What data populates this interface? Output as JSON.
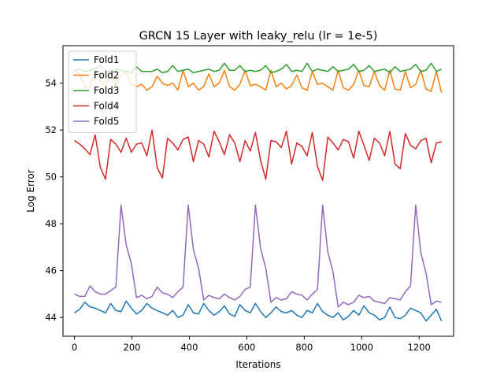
{
  "chart_data": {
    "type": "line",
    "title": "GRCN 15 Layer with leaky_relu (lr = 1e-5)",
    "xlabel": "Iterations",
    "ylabel": "Log Error",
    "xlim": [
      -40,
      1320
    ],
    "ylim": [
      43.2,
      55.6
    ],
    "xticks": [
      0,
      200,
      400,
      600,
      800,
      1000,
      1200
    ],
    "yticks": [
      44,
      46,
      48,
      50,
      52,
      54
    ],
    "grid": false,
    "legend_position": "top-left",
    "x": [
      0,
      18,
      36,
      54,
      72,
      90,
      108,
      126,
      144,
      162,
      180,
      198,
      216,
      234,
      252,
      270,
      288,
      306,
      324,
      342,
      360,
      378,
      396,
      414,
      432,
      450,
      468,
      486,
      504,
      522,
      540,
      558,
      576,
      594,
      612,
      630,
      648,
      666,
      684,
      702,
      720,
      738,
      756,
      774,
      792,
      810,
      828,
      846,
      864,
      882,
      900,
      918,
      936,
      954,
      972,
      990,
      1008,
      1026,
      1044,
      1062,
      1080,
      1098,
      1116,
      1134,
      1152,
      1170,
      1188,
      1206,
      1224,
      1242,
      1260,
      1278
    ],
    "series": [
      {
        "name": "Fold1",
        "color": "#1f77b4",
        "values": [
          44.2,
          44.35,
          44.65,
          44.45,
          44.4,
          44.3,
          44.2,
          44.6,
          44.3,
          44.25,
          44.7,
          44.4,
          44.15,
          44.3,
          44.6,
          44.4,
          44.3,
          44.2,
          44.1,
          44.3,
          44.0,
          44.1,
          44.55,
          44.2,
          44.15,
          44.6,
          44.3,
          44.1,
          44.25,
          44.5,
          44.15,
          44.05,
          44.55,
          44.3,
          44.2,
          44.6,
          44.25,
          44.0,
          44.2,
          44.45,
          44.25,
          44.2,
          44.3,
          44.1,
          44.0,
          44.3,
          44.2,
          44.6,
          44.25,
          44.1,
          44.0,
          44.2,
          43.9,
          44.05,
          44.3,
          44.1,
          44.5,
          44.2,
          44.1,
          43.9,
          44.0,
          44.45,
          44.0,
          43.95,
          44.1,
          44.4,
          44.3,
          44.2,
          43.85,
          44.1,
          44.35,
          43.85
        ]
      },
      {
        "name": "Fold2",
        "color": "#ff7f0e",
        "values": [
          54.55,
          54.4,
          53.8,
          53.85,
          54.55,
          54.1,
          53.85,
          54.6,
          53.9,
          54.35,
          54.5,
          53.95,
          53.85,
          53.95,
          53.7,
          53.85,
          54.3,
          54.0,
          53.9,
          54.0,
          53.7,
          54.55,
          53.85,
          54.0,
          53.7,
          53.85,
          54.4,
          53.85,
          54.0,
          54.55,
          53.85,
          53.7,
          53.95,
          54.55,
          53.9,
          53.95,
          53.85,
          53.7,
          54.55,
          53.85,
          54.0,
          53.75,
          53.9,
          54.35,
          53.8,
          53.7,
          54.5,
          53.95,
          54.0,
          53.85,
          53.7,
          54.55,
          53.8,
          53.7,
          53.95,
          54.55,
          53.9,
          53.85,
          54.5,
          53.9,
          53.7,
          54.55,
          53.75,
          53.7,
          54.5,
          53.8,
          53.95,
          54.55,
          53.75,
          53.65,
          54.5,
          53.6
        ]
      },
      {
        "name": "Fold3",
        "color": "#2ca02c",
        "values": [
          54.55,
          54.6,
          54.5,
          54.55,
          54.6,
          54.75,
          54.55,
          54.5,
          54.6,
          54.55,
          54.5,
          54.45,
          54.7,
          54.5,
          54.5,
          54.5,
          54.6,
          54.45,
          54.5,
          54.75,
          54.5,
          54.55,
          54.6,
          54.45,
          54.5,
          54.55,
          54.6,
          54.5,
          54.55,
          54.85,
          54.55,
          54.55,
          54.75,
          54.5,
          54.55,
          54.5,
          54.55,
          54.75,
          54.45,
          54.5,
          54.6,
          54.8,
          54.5,
          54.55,
          54.5,
          54.85,
          54.5,
          54.6,
          54.55,
          54.5,
          54.7,
          54.5,
          54.55,
          54.6,
          54.8,
          54.5,
          54.55,
          54.75,
          54.5,
          54.55,
          54.6,
          54.45,
          54.7,
          54.5,
          54.55,
          54.6,
          54.8,
          54.5,
          54.55,
          54.85,
          54.5,
          54.6
        ]
      },
      {
        "name": "Fold4",
        "color": "#d62728",
        "values": [
          51.55,
          51.4,
          51.2,
          50.95,
          51.8,
          50.4,
          49.9,
          51.6,
          51.4,
          51.05,
          51.65,
          51.05,
          51.4,
          51.45,
          50.9,
          52.0,
          50.4,
          49.95,
          51.65,
          51.45,
          51.15,
          51.6,
          51.7,
          50.65,
          51.55,
          51.4,
          50.85,
          51.95,
          51.5,
          50.95,
          51.8,
          51.45,
          50.65,
          51.55,
          51.1,
          51.9,
          50.7,
          49.9,
          51.55,
          51.5,
          51.25,
          51.95,
          50.55,
          51.45,
          51.3,
          50.9,
          51.9,
          50.45,
          49.85,
          51.7,
          51.45,
          51.15,
          51.6,
          51.5,
          50.8,
          51.95,
          51.35,
          50.7,
          51.65,
          51.45,
          50.9,
          51.95,
          50.55,
          50.35,
          51.85,
          51.35,
          51.2,
          51.55,
          51.65,
          50.6,
          51.45,
          51.5
        ]
      },
      {
        "name": "Fold5",
        "color": "#9467bd",
        "values": [
          45.0,
          44.9,
          44.9,
          45.35,
          45.1,
          45.0,
          45.0,
          45.15,
          45.3,
          48.8,
          47.1,
          46.3,
          44.85,
          44.95,
          44.8,
          44.9,
          45.3,
          45.05,
          45.0,
          44.85,
          45.1,
          45.3,
          48.8,
          46.9,
          46.1,
          44.75,
          44.95,
          44.85,
          44.8,
          45.0,
          44.85,
          44.75,
          44.9,
          45.2,
          45.3,
          48.8,
          46.95,
          46.1,
          44.65,
          44.85,
          44.75,
          44.8,
          45.1,
          45.0,
          44.95,
          44.75,
          45.0,
          45.2,
          48.8,
          46.8,
          45.95,
          44.45,
          44.65,
          44.55,
          44.65,
          44.95,
          44.85,
          44.9,
          44.7,
          44.65,
          44.6,
          44.85,
          44.8,
          44.75,
          45.1,
          45.35,
          48.8,
          46.75,
          45.9,
          44.55,
          44.7,
          44.65
        ]
      }
    ]
  }
}
